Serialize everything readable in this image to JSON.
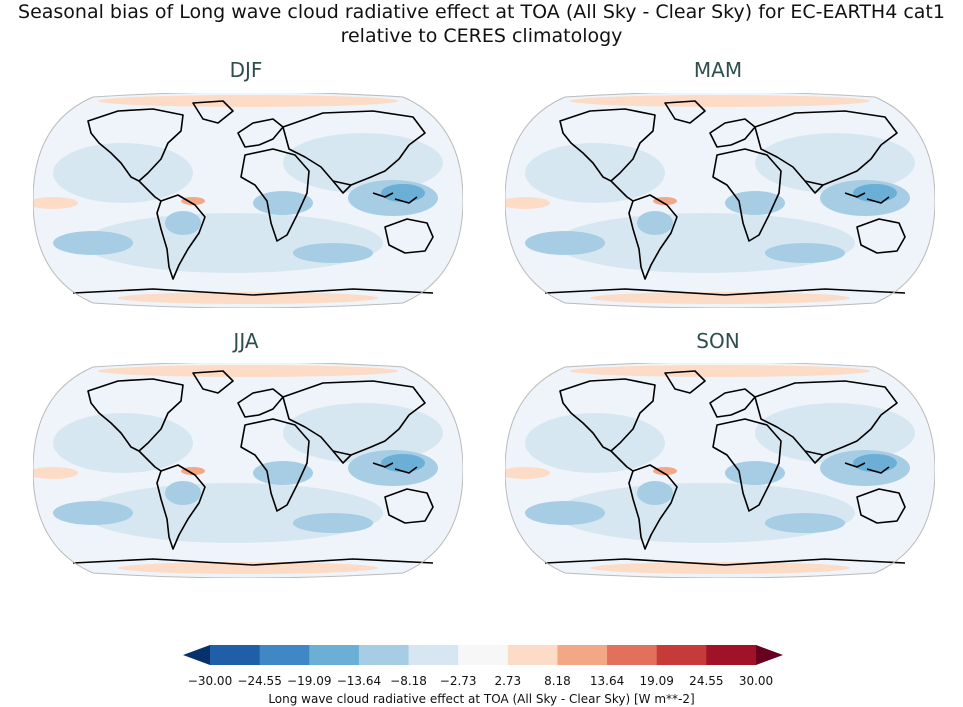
{
  "figure": {
    "title_line1": "Seasonal bias of Long wave cloud radiative effect at TOA (All Sky - Clear Sky) for EC-EARTH4 cat1",
    "title_line2": "relative to CERES climatology"
  },
  "panels": [
    {
      "id": "djf",
      "label": "DJF"
    },
    {
      "id": "mam",
      "label": "MAM"
    },
    {
      "id": "jja",
      "label": "JJA"
    },
    {
      "id": "son",
      "label": "SON"
    }
  ],
  "colorbar": {
    "label": "Long wave cloud radiative effect at TOA (All Sky - Clear Sky) [W m**-2]",
    "ticks": [
      "−30.00",
      "−24.55",
      "−19.09",
      "−13.64",
      "−8.18",
      "−2.73",
      "2.73",
      "8.18",
      "13.64",
      "19.09",
      "24.55",
      "30.00"
    ],
    "colors": [
      "#08306b",
      "#1f5fa8",
      "#3f88c5",
      "#6baed6",
      "#a6cde4",
      "#d6e7f2",
      "#f7f7f7",
      "#fcdcc7",
      "#f4a785",
      "#e3705a",
      "#c73a3a",
      "#a11228",
      "#67001f"
    ]
  },
  "colors": {
    "panel_title": "#2f4f4f",
    "map_background": "#f7f7f7",
    "coastline": "#000000"
  }
}
